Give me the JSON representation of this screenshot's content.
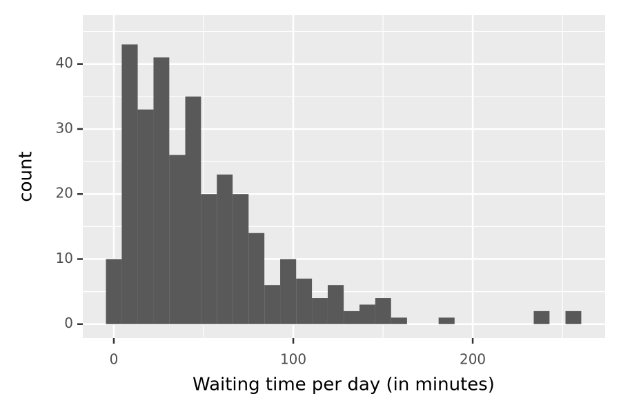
{
  "chart_data": {
    "type": "histogram",
    "x_label": "Waiting time per day (in minutes)",
    "y_label": "count",
    "bins": [
      -4.4,
      4.4,
      13.3,
      22.1,
      30.9,
      39.8,
      48.6,
      57.4,
      66.2,
      75.1,
      83.9,
      92.7,
      101.6,
      110.4,
      119.2,
      128.1,
      136.9,
      145.7,
      154.5,
      163.4,
      172.2,
      181.0,
      189.9,
      198.7,
      207.5,
      216.4,
      225.2,
      234.0,
      242.8,
      251.7,
      260.5
    ],
    "values": [
      10,
      43,
      33,
      41,
      26,
      35,
      20,
      23,
      20,
      14,
      6,
      10,
      7,
      4,
      6,
      2,
      3,
      4,
      1,
      0,
      0,
      1,
      0,
      0,
      0,
      0,
      0,
      2,
      0,
      2
    ],
    "color": "#595959",
    "xlim": [
      -17.3,
      273.8
    ],
    "xticks": [
      0,
      100,
      200
    ],
    "x_minor_grid": [
      50,
      150,
      250
    ],
    "ylim": [
      -2.15,
      47.5
    ],
    "yticks": [
      0,
      10,
      20,
      30,
      40
    ],
    "y_minor_grid": [
      5,
      15,
      25,
      35,
      45
    ],
    "grid": true
  }
}
